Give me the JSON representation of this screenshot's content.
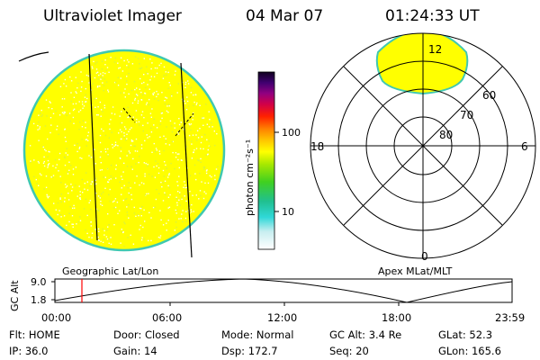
{
  "header": {
    "instrument": "Ultraviolet Imager",
    "date": "04 Mar 07",
    "time": "01:24:33 UT"
  },
  "colorbar": {
    "unit_label": "photon cm⁻²s⁻¹",
    "ticks": [
      {
        "label": "100",
        "value": 100
      },
      {
        "label": "10",
        "value": 10
      }
    ]
  },
  "polar_plot": {
    "mlt_labels": {
      "top": "12",
      "left": "18",
      "right": "6",
      "bottom": "0"
    },
    "lat_labels": [
      "60",
      "70",
      "80"
    ],
    "aurora_color": "#ffff00"
  },
  "image_panel": {
    "fill_color": "#ffff00",
    "edge_color": "#40c8b0"
  },
  "timeline": {
    "left_caption": "Geographic Lat/Lon",
    "right_caption": "Apex MLat/MLT",
    "ylabel": "GC Alt",
    "yticks": [
      "9.0",
      "1.8"
    ],
    "xticks": [
      "00:00",
      "06:00",
      "12:00",
      "18:00",
      "23:59"
    ]
  },
  "status": {
    "row1": [
      {
        "key": "Flt:",
        "value": "HOME"
      },
      {
        "key": "Door:",
        "value": "Closed"
      },
      {
        "key": "Mode:",
        "value": "Normal"
      },
      {
        "key": "GC Alt:",
        "value": "3.4 Re"
      },
      {
        "key": "GLat:",
        "value": "52.3"
      }
    ],
    "row2": [
      {
        "key": "IP:",
        "value": "36.0"
      },
      {
        "key": "Gain:",
        "value": "14"
      },
      {
        "key": "Dsp:",
        "value": "172.7"
      },
      {
        "key": "Seq:",
        "value": "20"
      },
      {
        "key": "GLon:",
        "value": "165.6"
      }
    ]
  }
}
